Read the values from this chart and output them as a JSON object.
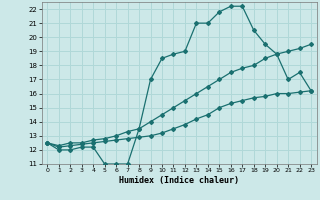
{
  "xlabel": "Humidex (Indice chaleur)",
  "xlim": [
    -0.5,
    23.5
  ],
  "ylim": [
    11,
    22.5
  ],
  "yticks": [
    11,
    12,
    13,
    14,
    15,
    16,
    17,
    18,
    19,
    20,
    21,
    22
  ],
  "xticks": [
    0,
    1,
    2,
    3,
    4,
    5,
    6,
    7,
    8,
    9,
    10,
    11,
    12,
    13,
    14,
    15,
    16,
    17,
    18,
    19,
    20,
    21,
    22,
    23
  ],
  "bg_color": "#cce8e8",
  "grid_color": "#b0d8d8",
  "line_color": "#1a7070",
  "line1_y": [
    12.5,
    12.0,
    12.0,
    12.2,
    12.2,
    11.0,
    11.0,
    11.0,
    13.5,
    17.0,
    18.5,
    18.8,
    19.0,
    21.0,
    21.0,
    21.8,
    22.2,
    22.2,
    20.5,
    19.5,
    18.8,
    17.0,
    17.5,
    16.2
  ],
  "line2_y": [
    12.5,
    12.3,
    12.5,
    12.5,
    12.7,
    12.8,
    13.0,
    13.3,
    13.5,
    14.0,
    14.5,
    15.0,
    15.5,
    16.0,
    16.5,
    17.0,
    17.5,
    17.8,
    18.0,
    18.5,
    18.8,
    19.0,
    19.2,
    19.5
  ],
  "line3_y": [
    12.5,
    12.2,
    12.3,
    12.4,
    12.5,
    12.6,
    12.7,
    12.8,
    12.9,
    13.0,
    13.2,
    13.5,
    13.8,
    14.2,
    14.5,
    15.0,
    15.3,
    15.5,
    15.7,
    15.8,
    16.0,
    16.0,
    16.1,
    16.2
  ]
}
